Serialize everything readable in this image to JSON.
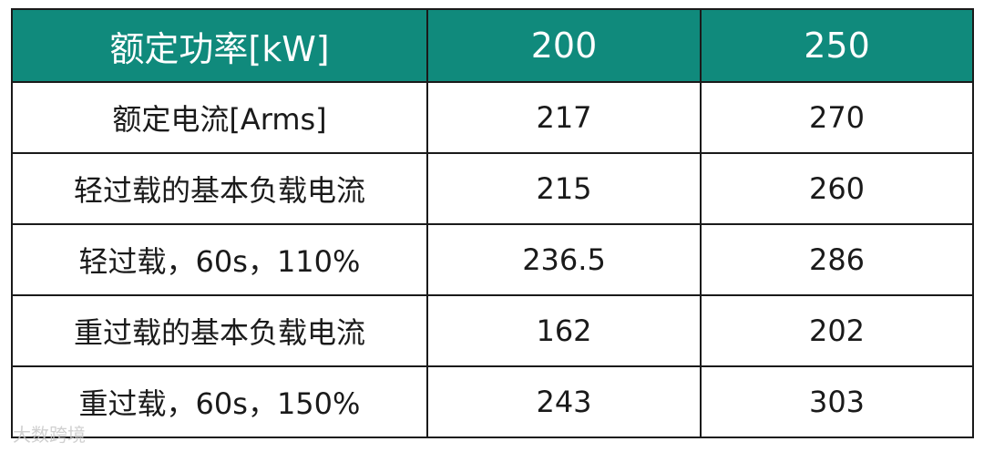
{
  "table": {
    "header": [
      "额定功率[kW]",
      "200",
      "250"
    ],
    "rows": [
      [
        "额定电流[Arms]",
        "217",
        "270"
      ],
      [
        "轻过载的基本负载电流",
        "215",
        "260"
      ],
      [
        "轻过载，60s，110%",
        "236.5",
        "286"
      ],
      [
        "重过载的基本负载电流",
        "162",
        "202"
      ],
      [
        "重过载，60s，150%",
        "243",
        "303"
      ]
    ]
  },
  "watermark": "大数跨境"
}
